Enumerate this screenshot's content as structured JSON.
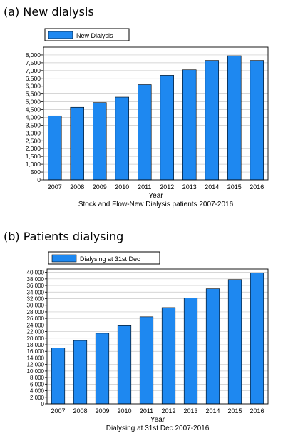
{
  "panels": [
    {
      "heading": "(a)  New dialysis"
    },
    {
      "heading": "(b)  Patients dialysing"
    }
  ],
  "colors": {
    "bar": "#1e88f0",
    "bar_stroke": "#000000",
    "grid": "#c8c8c8"
  },
  "chart_data": [
    {
      "type": "bar",
      "title": "",
      "caption": "Stock and Flow-New Dialysis patients 2007-2016",
      "xlabel": "Year",
      "ylabel": "",
      "legend": {
        "label": "New Dialysis",
        "placement": "top-left"
      },
      "categories": [
        "2007",
        "2008",
        "2009",
        "2010",
        "2011",
        "2012",
        "2013",
        "2014",
        "2015",
        "2016"
      ],
      "series": [
        {
          "name": "New Dialysis",
          "values": [
            4100,
            4650,
            4950,
            5300,
            6100,
            6700,
            7050,
            7650,
            7950,
            7650
          ]
        }
      ],
      "ylim": [
        0,
        8500
      ],
      "yticks": [
        0,
        500,
        1000,
        1500,
        2000,
        2500,
        3000,
        3500,
        4000,
        4500,
        5000,
        5500,
        6000,
        6500,
        7000,
        7500,
        8000
      ],
      "ytick_labels": [
        "0",
        "500",
        "1,000",
        "1,500",
        "2,000",
        "2,500",
        "3,000",
        "3,500",
        "4,000",
        "4,500",
        "5,000",
        "5,500",
        "6,000",
        "6,500",
        "7,000",
        "7,500",
        "8,000"
      ],
      "grid": true
    },
    {
      "type": "bar",
      "title": "",
      "caption": "Dialysing at 31st Dec 2007-2016",
      "xlabel": "Year",
      "ylabel": "",
      "legend": {
        "label": "Dialysing at 31st Dec",
        "placement": "top-left"
      },
      "categories": [
        "2007",
        "2008",
        "2009",
        "2010",
        "2011",
        "2012",
        "2013",
        "2014",
        "2015",
        "2016"
      ],
      "series": [
        {
          "name": "Dialysing at 31st Dec",
          "values": [
            17000,
            19300,
            21500,
            23800,
            26500,
            29300,
            32200,
            35000,
            37800,
            39800
          ]
        }
      ],
      "ylim": [
        0,
        41000
      ],
      "yticks": [
        0,
        2000,
        4000,
        6000,
        8000,
        10000,
        12000,
        14000,
        16000,
        18000,
        20000,
        22000,
        24000,
        26000,
        28000,
        30000,
        32000,
        34000,
        36000,
        38000,
        40000
      ],
      "ytick_labels": [
        "0",
        "2,000",
        "4,000",
        "6,000",
        "8,000",
        "10,000",
        "12,000",
        "14,000",
        "16,000",
        "18,000",
        "20,000",
        "22,000",
        "24,000",
        "26,000",
        "28,000",
        "30,000",
        "32,000",
        "34,000",
        "36,000",
        "38,000",
        "40,000"
      ],
      "grid": true
    }
  ]
}
